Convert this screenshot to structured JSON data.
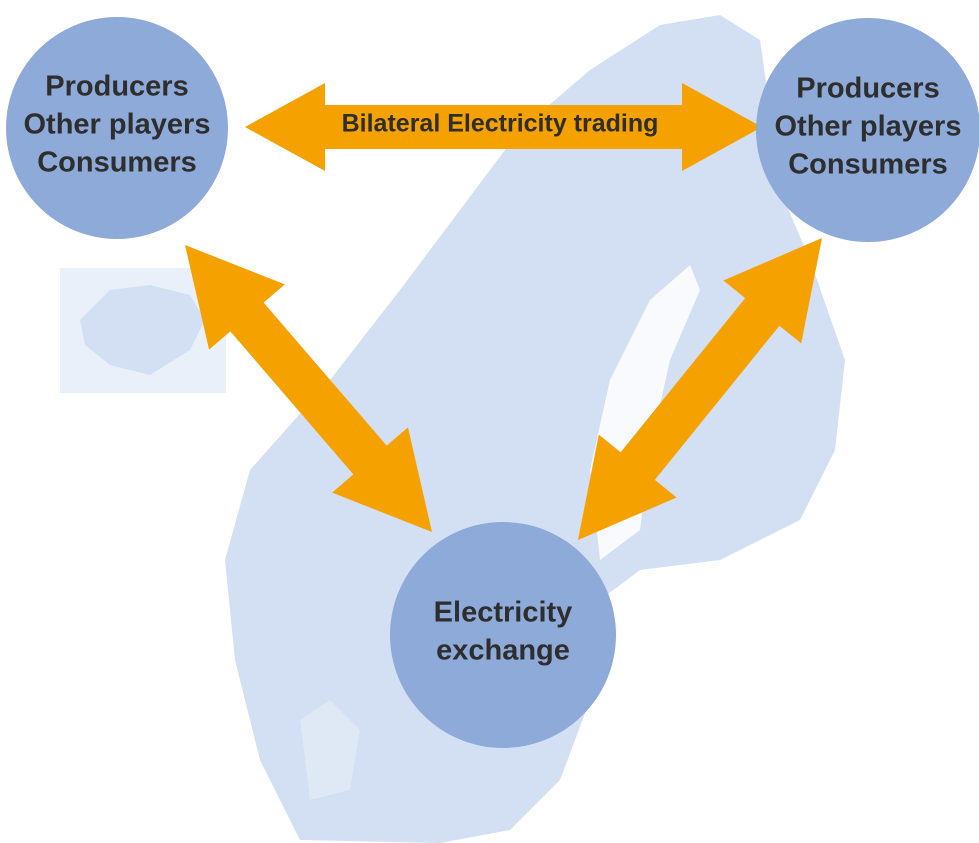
{
  "nodes": [
    {
      "lines": [
        "Producers",
        "Other players",
        "Consumers"
      ]
    },
    {
      "lines": [
        "Producers",
        "Other players",
        "Consumers"
      ]
    },
    {
      "lines": [
        "Electricity",
        "exchange"
      ]
    }
  ],
  "edges": [
    {
      "label": "Bilateral Electricity trading"
    }
  ]
}
